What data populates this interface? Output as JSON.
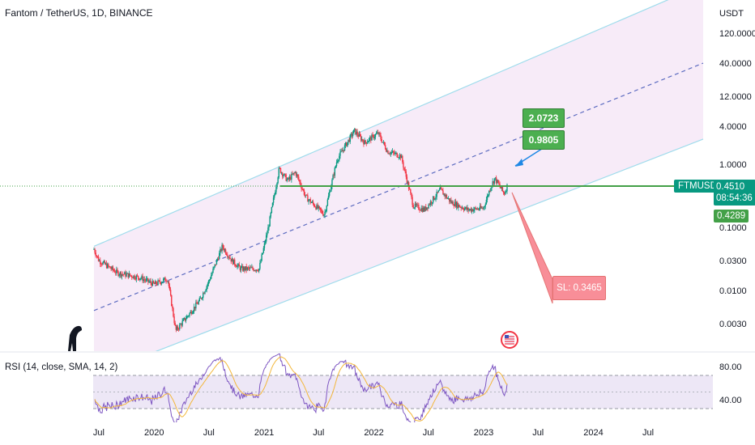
{
  "header": {
    "title": "Fantom / TetherUS, 1D, BINANCE"
  },
  "rsi": {
    "title": "RSI (14, close, SMA, 14, 2)",
    "ticks": [
      "80.00",
      "40.00"
    ]
  },
  "price_scale": {
    "unit": "USDT",
    "ticks": [
      "120.0000",
      "40.0000",
      "12.0000",
      "4.0000",
      "1.0000",
      "0.1000",
      "0.0300",
      "0.0100",
      "0.0030"
    ]
  },
  "labels": {
    "symbol": "FTMUSDT",
    "last_price": "0.4510",
    "countdown": "08:54:36",
    "low_price": "0.4289",
    "target_1": "2.0723",
    "target_2": "0.9805",
    "stop_loss": "SL: 0.3465"
  },
  "time_axis": {
    "labels": [
      "Jul",
      "2020",
      "Jul",
      "2021",
      "Jul",
      "2022",
      "Jul",
      "2023",
      "Jul",
      "2024",
      "Jul"
    ]
  },
  "colors": {
    "channel_fill": "#f7ebf8",
    "channel_line": "#9fdcec",
    "midline": "#5c6bc0",
    "bull": "#089981",
    "bear": "#f23645",
    "level_line": "#43a047",
    "target_box": "#4caf50",
    "sl_box": "#f88e98",
    "rsi_line": "#7e57c2",
    "rsi_ma": "#f3b73b"
  },
  "chart_data": {
    "type": "candlestick",
    "title": "Fantom / TetherUS, 1D, BINANCE",
    "y_scale": "log",
    "y_unit": "USDT",
    "y_ticks": [
      120,
      40,
      12,
      4,
      1,
      0.1,
      0.03,
      0.01,
      0.003
    ],
    "x_ticks": [
      "Jul",
      "2020",
      "Jul",
      "2021",
      "Jul",
      "2022",
      "Jul",
      "2023",
      "Jul",
      "2024",
      "Jul"
    ],
    "price_path": [
      {
        "date": "2019-06-15",
        "price": 0.045
      },
      {
        "date": "2019-07-01",
        "price": 0.03
      },
      {
        "date": "2019-09-01",
        "price": 0.019
      },
      {
        "date": "2019-11-15",
        "price": 0.016
      },
      {
        "date": "2020-01-01",
        "price": 0.0125
      },
      {
        "date": "2020-02-15",
        "price": 0.0155
      },
      {
        "date": "2020-03-13",
        "price": 0.0023
      },
      {
        "date": "2020-05-01",
        "price": 0.0045
      },
      {
        "date": "2020-06-01",
        "price": 0.007
      },
      {
        "date": "2020-07-01",
        "price": 0.014
      },
      {
        "date": "2020-08-15",
        "price": 0.05
      },
      {
        "date": "2020-09-15",
        "price": 0.03
      },
      {
        "date": "2020-10-15",
        "price": 0.022
      },
      {
        "date": "2020-12-15",
        "price": 0.022
      },
      {
        "date": "2021-01-15",
        "price": 0.1
      },
      {
        "date": "2021-02-20",
        "price": 0.85
      },
      {
        "date": "2021-03-20",
        "price": 0.55
      },
      {
        "date": "2021-04-15",
        "price": 0.75
      },
      {
        "date": "2021-05-20",
        "price": 0.3
      },
      {
        "date": "2021-07-20",
        "price": 0.16
      },
      {
        "date": "2021-09-01",
        "price": 1.2
      },
      {
        "date": "2021-10-28",
        "price": 3.4
      },
      {
        "date": "2021-12-01",
        "price": 2.2
      },
      {
        "date": "2022-01-15",
        "price": 3.1
      },
      {
        "date": "2022-02-15",
        "price": 1.6
      },
      {
        "date": "2022-04-01",
        "price": 1.35
      },
      {
        "date": "2022-05-12",
        "price": 0.22
      },
      {
        "date": "2022-06-18",
        "price": 0.19
      },
      {
        "date": "2022-08-10",
        "price": 0.39
      },
      {
        "date": "2022-09-15",
        "price": 0.25
      },
      {
        "date": "2022-11-09",
        "price": 0.19
      },
      {
        "date": "2022-12-31",
        "price": 0.2
      },
      {
        "date": "2023-01-25",
        "price": 0.45
      },
      {
        "date": "2023-02-07",
        "price": 0.6
      },
      {
        "date": "2023-03-10",
        "price": 0.34
      },
      {
        "date": "2023-03-20",
        "price": 0.451
      }
    ],
    "last_price": 0.451,
    "horizontal_level": 0.451,
    "annotations": [
      {
        "text": "2.0723",
        "date": "2023-05-15",
        "price": 2.0723
      },
      {
        "text": "0.9805",
        "date": "2023-05-15",
        "price": 0.9805
      },
      {
        "text": "SL: 0.3465",
        "date": "2023-06-15",
        "price": 0.3465
      }
    ],
    "channel": {
      "upper": [
        {
          "date": "2019-06-15",
          "price": 0.05
        },
        {
          "date": "2024-12-31",
          "price": 700
        }
      ],
      "middle": [
        {
          "date": "2019-06-15",
          "price": 0.0048
        },
        {
          "date": "2024-12-31",
          "price": 40
        }
      ],
      "lower": [
        {
          "date": "2019-06-15",
          "price": 0.00045
        },
        {
          "date": "2024-12-31",
          "price": 2.5
        }
      ]
    },
    "rsi": {
      "name": "RSI (14, close, SMA, 14, 2)",
      "upper_band": 70,
      "lower_band": 30,
      "y_ticks": [
        80,
        40
      ]
    }
  }
}
